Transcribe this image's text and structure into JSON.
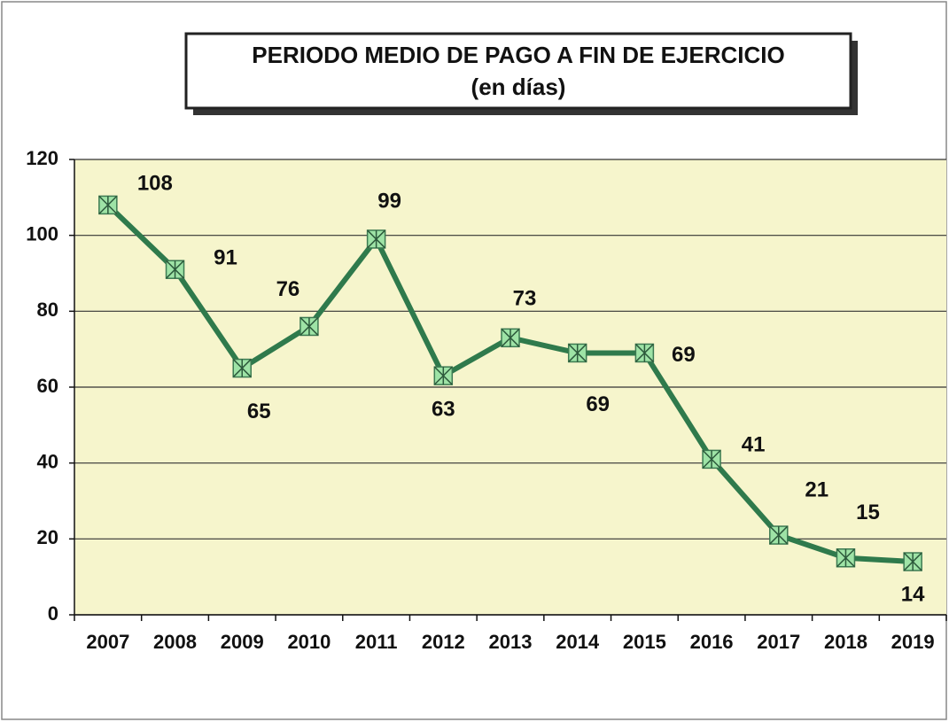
{
  "chart_data": {
    "type": "line",
    "title": "PERIODO MEDIO DE PAGO A FIN DE EJERCICIO",
    "subtitle": "(en días)",
    "categories": [
      "2007",
      "2008",
      "2009",
      "2010",
      "2011",
      "2012",
      "2013",
      "2014",
      "2015",
      "2016",
      "2017",
      "2018",
      "2019"
    ],
    "values": [
      108,
      91,
      65,
      76,
      99,
      63,
      73,
      69,
      69,
      41,
      21,
      15,
      14
    ],
    "color": "#2f7a4c",
    "ylim": [
      0,
      120
    ],
    "yticks": [
      0,
      20,
      40,
      60,
      80,
      100,
      120
    ],
    "grid": true
  }
}
